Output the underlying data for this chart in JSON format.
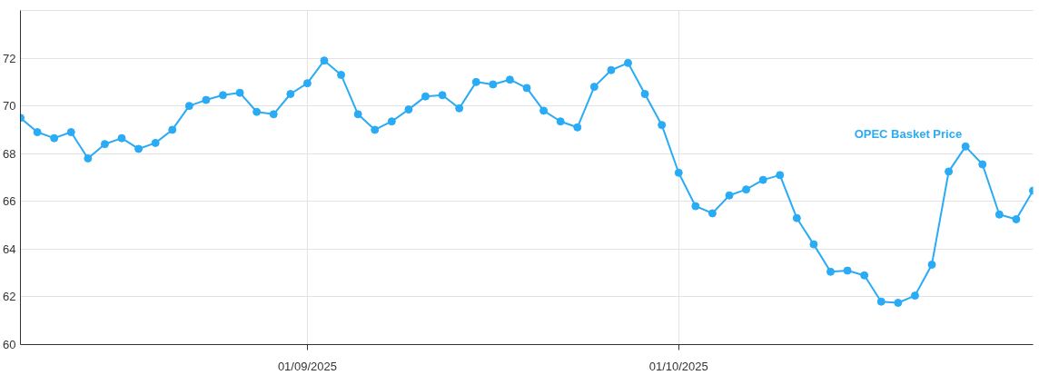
{
  "chart_data": {
    "type": "line",
    "categories": [
      null,
      null,
      null,
      null,
      null,
      null,
      null,
      null,
      null,
      null,
      null,
      null,
      null,
      null,
      null,
      null,
      null,
      "01/09/2025",
      null,
      null,
      null,
      null,
      null,
      null,
      null,
      null,
      null,
      null,
      null,
      null,
      null,
      null,
      null,
      null,
      null,
      null,
      null,
      null,
      null,
      "01/10/2025",
      null,
      null,
      null,
      null,
      null,
      null,
      null,
      null,
      null,
      null,
      null,
      null,
      null,
      null,
      null,
      null,
      null,
      null,
      null,
      null,
      null
    ],
    "series": [
      {
        "name": "OPEC Basket Price",
        "color": "#29abf5",
        "values": [
          69.5,
          68.9,
          68.65,
          68.9,
          67.8,
          68.4,
          68.65,
          68.2,
          68.45,
          69.0,
          70.0,
          70.25,
          70.45,
          70.55,
          69.75,
          69.65,
          70.5,
          70.95,
          71.9,
          71.3,
          69.65,
          69.0,
          69.35,
          69.85,
          70.4,
          70.45,
          69.9,
          71.0,
          70.9,
          71.1,
          70.75,
          69.8,
          69.35,
          69.1,
          70.8,
          71.5,
          71.8,
          70.5,
          69.2,
          67.2,
          65.8,
          65.5,
          66.25,
          66.5,
          66.9,
          67.1,
          65.3,
          64.2,
          63.05,
          63.1,
          62.9,
          61.8,
          61.75,
          62.05,
          63.35,
          67.25,
          68.3,
          67.55,
          65.45,
          65.25,
          66.45
        ]
      }
    ],
    "ylim": [
      60,
      74
    ],
    "yticks": [
      60,
      62,
      64,
      66,
      68,
      70,
      72
    ],
    "grid": true,
    "marker": "circle",
    "line_style": "solid"
  }
}
